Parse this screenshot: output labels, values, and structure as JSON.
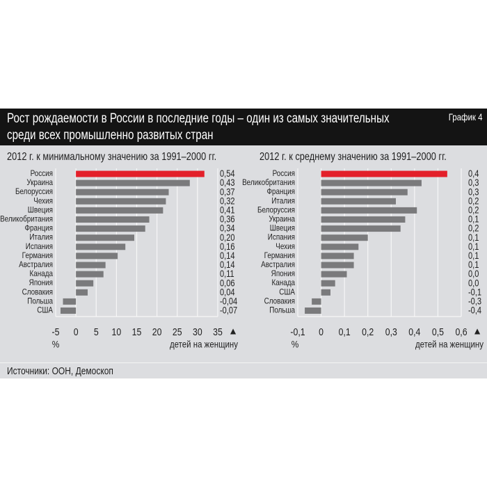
{
  "header": {
    "title_line1": "Рост рождаемости в России в последние годы – один из самых значительных",
    "title_line2": "среди всех промышленно развитых стран",
    "graph_label": "График 4"
  },
  "footer": {
    "sources": "Источники: ООН, Демоскоп"
  },
  "chart_data": [
    {
      "type": "bar",
      "orientation": "horizontal",
      "title": "2012 г. к минимальному значению за 1991–2000 гг.",
      "categories": [
        "Россия",
        "Украина",
        "Белоруссия",
        "Чехия",
        "Швеция",
        "Великобритания",
        "Франция",
        "Италия",
        "Испания",
        "Германия",
        "Австралия",
        "Канада",
        "Япония",
        "Словакия",
        "Польша",
        "США"
      ],
      "values": [
        31.7,
        28.1,
        22.9,
        22.2,
        21.5,
        18.1,
        17.1,
        14.4,
        12.2,
        10.3,
        7.3,
        6.8,
        4.3,
        2.9,
        -3.2,
        -3.8
      ],
      "value_labels": [
        "0,54",
        "0,43",
        "0,37",
        "0,32",
        "0,41",
        "0,36",
        "0,34",
        "0,20",
        "0,16",
        "0,14",
        "0,14",
        "0,11",
        "0,06",
        "0,04",
        "-0,04",
        "-0,07"
      ],
      "highlight": "Россия",
      "xlabel": "%",
      "secondary_label": "детей на женщину",
      "secondary_marker": "▲",
      "xlim": [
        -5,
        35
      ],
      "xticks": [
        -5,
        0,
        5,
        10,
        15,
        20,
        25,
        30,
        35
      ],
      "xtick_labels": [
        "-5",
        "0",
        "5",
        "10",
        "15",
        "20",
        "25",
        "30",
        "35"
      ],
      "grid": true,
      "colors": {
        "bar": "#7a7a7c",
        "highlight": "#e3202a"
      }
    },
    {
      "type": "bar",
      "orientation": "horizontal",
      "title": "2012 г. к среднему значению за 1991–2000 гг.",
      "categories": [
        "Россия",
        "Великобритания",
        "Франция",
        "Италия",
        "Белоруссия",
        "Украина",
        "Швеция",
        "Испания",
        "Чехия",
        "Германия",
        "Австралия",
        "Япония",
        "Канада",
        "США",
        "Словакия",
        "Польша"
      ],
      "values": [
        0.54,
        0.43,
        0.37,
        0.32,
        0.41,
        0.36,
        0.34,
        0.2,
        0.16,
        0.14,
        0.14,
        0.11,
        0.06,
        0.04,
        -0.04,
        -0.07
      ],
      "value_labels": [
        "0,4",
        "0,3",
        "0,3",
        "0,2",
        "0,2",
        "0,1",
        "0,2",
        "0,1",
        "0,1",
        "0,1",
        "0,1",
        "0,0",
        "0,0",
        "-0,1",
        "-0,3",
        "-0,4"
      ],
      "highlight": "Россия",
      "xlabel": "%",
      "secondary_label": "детей на женщину",
      "secondary_marker": "▲",
      "xlim": [
        -0.1,
        0.6
      ],
      "xticks": [
        -0.1,
        0,
        0.1,
        0.2,
        0.3,
        0.4,
        0.5,
        0.6
      ],
      "xtick_labels": [
        "-0,1",
        "0",
        "0,1",
        "0,2",
        "0,3",
        "0,4",
        "0,5",
        "0,6"
      ],
      "grid": true,
      "colors": {
        "bar": "#7a7a7c",
        "highlight": "#e3202a"
      }
    }
  ]
}
